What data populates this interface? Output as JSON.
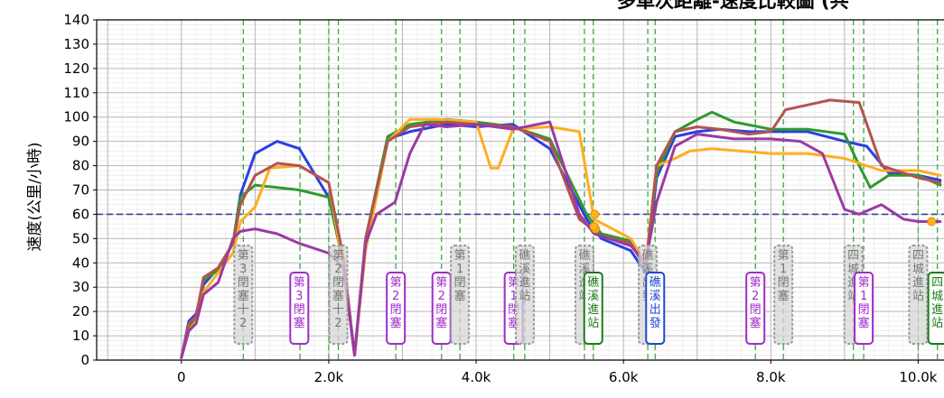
{
  "chart_data": {
    "type": "line",
    "title": "多車次距離-速度比較圖 (共 ",
    "xlabel": "",
    "ylabel": "速度(公里/小時)",
    "xlim": [
      -1150,
      10350
    ],
    "ylim": [
      0,
      140
    ],
    "yticks": [
      0,
      10,
      20,
      30,
      40,
      50,
      60,
      70,
      80,
      90,
      100,
      110,
      120,
      130,
      140
    ],
    "xticks": [
      {
        "v": 0,
        "label": "0"
      },
      {
        "v": 2000,
        "label": "2.0k"
      },
      {
        "v": 4000,
        "label": "4.0k"
      },
      {
        "v": 6000,
        "label": "6.0k"
      },
      {
        "v": 8000,
        "label": "8.0k"
      },
      {
        "v": 10000,
        "label": "10.0k"
      }
    ],
    "grid": true,
    "legend": "none",
    "reference_line": {
      "y": 60,
      "color": "#3a3f9e",
      "style": "dashed"
    },
    "event_lines": [
      840,
      1610,
      2000,
      2130,
      2910,
      3530,
      3780,
      4510,
      4660,
      5470,
      5590,
      6330,
      6430,
      7790,
      8170,
      9120,
      9260,
      10000,
      10260
    ],
    "series": [
      {
        "color": "#2b3fe3",
        "x": [
          0,
          100,
          200,
          300,
          500,
          700,
          800,
          1000,
          1300,
          1600,
          2000,
          2200,
          2350,
          2500,
          2800,
          3100,
          3600,
          4000,
          4500,
          5000,
          5500,
          5700,
          6100,
          6300,
          6450,
          6700,
          7000,
          7300,
          7700,
          8000,
          8500,
          9000,
          9300,
          9600,
          10000,
          10300
        ],
        "y": [
          1,
          16,
          19,
          31,
          38,
          48,
          68,
          85,
          90,
          87,
          67,
          40,
          2,
          48,
          91,
          94,
          97,
          96,
          97,
          87,
          58,
          50,
          45,
          36,
          75,
          92,
          94,
          95,
          94,
          94,
          94,
          90,
          88,
          77,
          76,
          74
        ]
      },
      {
        "color": "#2e9a2e",
        "x": [
          0,
          100,
          200,
          300,
          500,
          700,
          800,
          1000,
          1300,
          1600,
          2000,
          2200,
          2350,
          2500,
          2800,
          3100,
          3600,
          4000,
          4500,
          5000,
          5500,
          5700,
          6100,
          6300,
          6450,
          6700,
          7000,
          7200,
          7500,
          8000,
          8500,
          9000,
          9200,
          9350,
          9600,
          10000,
          10300
        ],
        "y": [
          1,
          14,
          17,
          33,
          37,
          48,
          67,
          72,
          71,
          70,
          67,
          40,
          2,
          50,
          92,
          97,
          99,
          98,
          96,
          91,
          60,
          52,
          49,
          40,
          77,
          94,
          99,
          102,
          98,
          95,
          95,
          93,
          80,
          71,
          76,
          76,
          72
        ]
      },
      {
        "color": "#ffad1f",
        "x": [
          0,
          100,
          200,
          300,
          500,
          700,
          800,
          1000,
          1200,
          1600,
          2000,
          2200,
          2350,
          2500,
          2800,
          3100,
          3500,
          4000,
          4200,
          4300,
          4500,
          5000,
          5400,
          5600,
          6100,
          6300,
          6450,
          6700,
          6900,
          7200,
          8000,
          8500,
          9000,
          9500,
          10000,
          10300
        ],
        "y": [
          1,
          12,
          16,
          28,
          36,
          44,
          57,
          63,
          79,
          80,
          73,
          38,
          2,
          45,
          90,
          99,
          99,
          98,
          79,
          79,
          95,
          96,
          94,
          58,
          50,
          40,
          80,
          83,
          86,
          87,
          85,
          85,
          83,
          78,
          78,
          76
        ]
      },
      {
        "color": "#b25450",
        "x": [
          0,
          100,
          200,
          300,
          500,
          700,
          800,
          1000,
          1300,
          1600,
          2000,
          2200,
          2350,
          2500,
          2800,
          3100,
          3600,
          4000,
          4500,
          5000,
          5400,
          5700,
          6100,
          6300,
          6450,
          6700,
          7000,
          7300,
          7700,
          8000,
          8200,
          8800,
          9200,
          9500,
          10000,
          10300
        ],
        "y": [
          1,
          15,
          18,
          34,
          38,
          48,
          64,
          76,
          81,
          80,
          73,
          42,
          2,
          50,
          90,
          96,
          98,
          97,
          96,
          90,
          58,
          51,
          48,
          38,
          80,
          94,
          96,
          95,
          93,
          94,
          103,
          107,
          106,
          80,
          75,
          73
        ]
      },
      {
        "color": "#9c3aa3",
        "x": [
          0,
          100,
          200,
          300,
          500,
          700,
          800,
          1000,
          1300,
          1600,
          2000,
          2200,
          2350,
          2500,
          2650,
          2900,
          3100,
          3300,
          3600,
          4000,
          4500,
          5000,
          5400,
          5600,
          6100,
          6300,
          6450,
          6700,
          7000,
          7500,
          8000,
          8400,
          8700,
          9000,
          9200,
          9500,
          9800,
          10000,
          10300
        ],
        "y": [
          1,
          12,
          15,
          27,
          32,
          50,
          53,
          54,
          52,
          48,
          44,
          38,
          2,
          48,
          60,
          65,
          85,
          97,
          96,
          97,
          95,
          98,
          60,
          52,
          47,
          40,
          65,
          88,
          93,
          91,
          91,
          90,
          85,
          62,
          60,
          64,
          58,
          57,
          57
        ]
      }
    ],
    "highlight_points": [
      {
        "x": 5610,
        "y": 60
      },
      {
        "x": 5620,
        "y": 54
      },
      {
        "x": 5600,
        "y": 55
      },
      {
        "x": 10180,
        "y": 57
      }
    ],
    "annotations": [
      {
        "x": 840,
        "text": "第3閉塞十2",
        "style": "grey"
      },
      {
        "x": 1600,
        "text": "第3閉塞",
        "style": "purple"
      },
      {
        "x": 2130,
        "text": "第2閉塞十2",
        "style": "grey"
      },
      {
        "x": 2910,
        "text": "第2閉塞",
        "style": "purple"
      },
      {
        "x": 3530,
        "text": "第2閉塞",
        "style": "purple"
      },
      {
        "x": 3780,
        "text": "第1閉塞",
        "style": "grey"
      },
      {
        "x": 4510,
        "text": "第1閉塞",
        "style": "purple"
      },
      {
        "x": 4660,
        "text": "礁溪進站",
        "style": "grey"
      },
      {
        "x": 5470,
        "text": "礁溪進站",
        "style": "grey"
      },
      {
        "x": 5590,
        "text": "礁溪進站",
        "style": "green"
      },
      {
        "x": 6330,
        "text": "礁溪出發",
        "style": "grey"
      },
      {
        "x": 6430,
        "text": "礁溪出發",
        "style": "blue"
      },
      {
        "x": 7790,
        "text": "第2閉塞",
        "style": "purple"
      },
      {
        "x": 8170,
        "text": "第1閉塞",
        "style": "grey"
      },
      {
        "x": 9120,
        "text": "四城進站",
        "style": "grey"
      },
      {
        "x": 9260,
        "text": "第1閉塞",
        "style": "purple"
      },
      {
        "x": 10000,
        "text": "四城進站",
        "style": "grey"
      },
      {
        "x": 10260,
        "text": "四城進站",
        "style": "green"
      }
    ]
  }
}
